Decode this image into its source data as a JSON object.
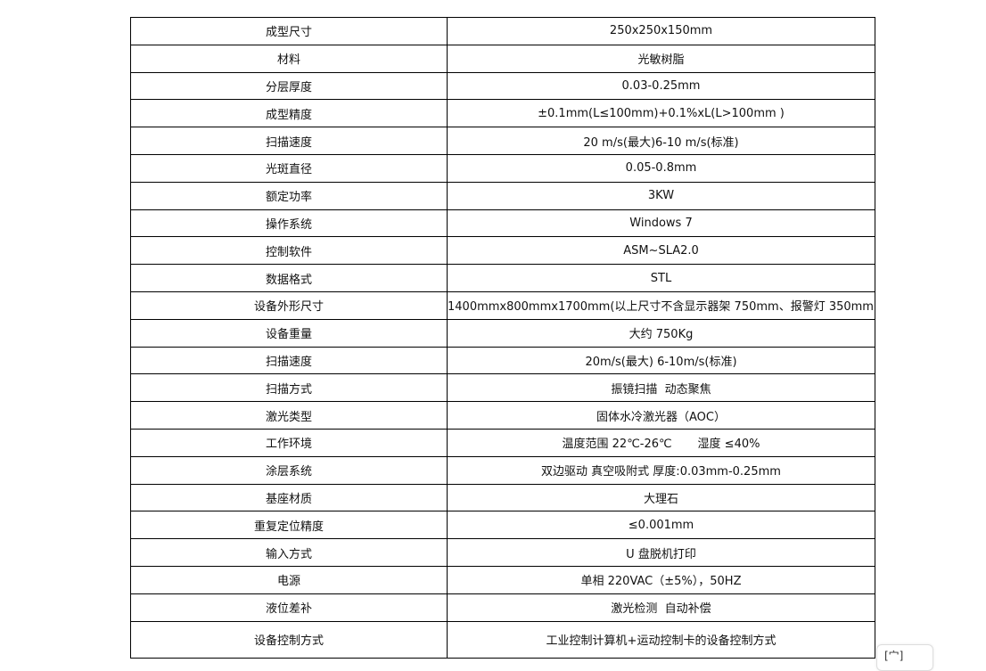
{
  "rows": [
    {
      "label": "成型尺寸",
      "value": "250x250x150mm"
    },
    {
      "label": "材料",
      "value": "光敏树脂"
    },
    {
      "label": "分层厚度",
      "value": "0.03-0.25mm"
    },
    {
      "label": "成型精度",
      "value": "±0.1mm(L≤100mm)+0.1%xL(L>100mm )"
    },
    {
      "label": "扫描速度",
      "value": "20 m/s(最大)6-10 m/s(标准)"
    },
    {
      "label": "光斑直径",
      "value": "0.05-0.8mm"
    },
    {
      "label": "额定功率",
      "value": "3KW"
    },
    {
      "label": "操作系统",
      "value": "Windows 7"
    },
    {
      "label": "控制软件",
      "value": "ASM~SLA2.0"
    },
    {
      "label": "数据格式",
      "value": "STL"
    },
    {
      "label": "设备外形尺寸",
      "value": "1400mmx800mmx1700mm(以上尺寸不含显示器架 750mm、报警灯 350mm)"
    },
    {
      "label": "设备重量",
      "value": "大约 750Kg"
    },
    {
      "label": "扫描速度",
      "value": "20m/s(最大) 6-10m/s(标准)"
    },
    {
      "label": "扫描方式",
      "value": "振镜扫描  动态聚焦"
    },
    {
      "label": "激光类型",
      "value": "固体水冷激光器（AOC）"
    },
    {
      "label": "工作环境",
      "value": "温度范围 22℃-26℃       湿度 ≤40%"
    },
    {
      "label": "涂层系统",
      "value": "双边驱动 真空吸附式 厚度:0.03mm-0.25mm"
    },
    {
      "label": "基座材质",
      "value": "大理石"
    },
    {
      "label": "重复定位精度",
      "value": "≤0.001mm"
    },
    {
      "label": "输入方式",
      "value": "U 盘脱机打印"
    },
    {
      "label": "电源",
      "value": "单相 220VAC（±5%），50HZ"
    },
    {
      "label": "液位差补",
      "value": "激光检测  自动补偿"
    },
    {
      "label": "设备控制方式",
      "value": "工业控制计算机+运动控制卡的设备控制方式"
    }
  ],
  "float_button": {
    "label": "[宀]"
  }
}
